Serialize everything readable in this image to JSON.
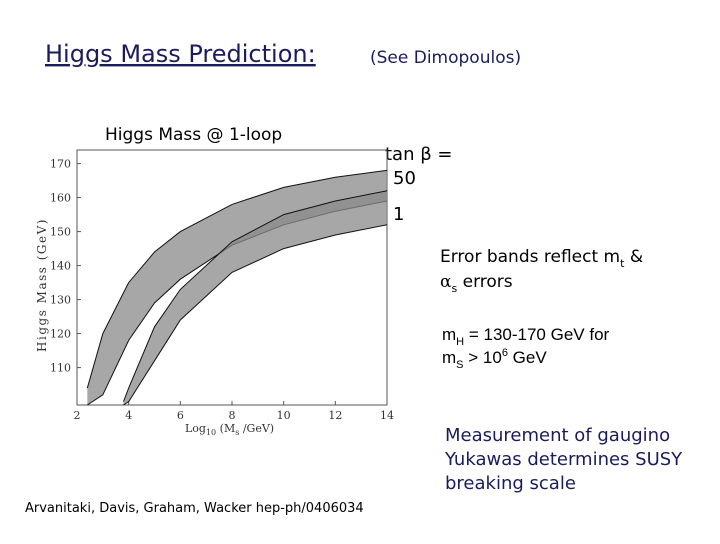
{
  "slide": {
    "title": "Higgs Mass Prediction:",
    "title_note": "(See Dimopoulos)",
    "chart_caption": "Higgs Mass @ 1-loop",
    "tan_label": "tan β =",
    "tan_50": "50",
    "tan_1": "1",
    "error_note": [
      "Error bands reflect m",
      "t",
      " &",
      "α",
      "s",
      " errors"
    ],
    "mass_note": [
      "m",
      "H",
      " = 130-170 GeV for",
      "m",
      "S",
      " > 10",
      "6",
      " GeV"
    ],
    "measurement_note": [
      "Measurement of gaugino",
      "Yukawas determines SUSY",
      "breaking scale"
    ],
    "citation": "Arvanitaki, Davis, Graham, Wacker hep-ph/0406034"
  },
  "chart_data": {
    "type": "band",
    "x_label": [
      "Log",
      "10",
      " (M",
      "s",
      " /GeV)"
    ],
    "y_label": "Higgs Mass (GeV)",
    "xlim": [
      2,
      14
    ],
    "ylim": [
      99,
      174
    ],
    "xticks": [
      2,
      4,
      6,
      8,
      10,
      12,
      14
    ],
    "yticks": [
      110,
      120,
      130,
      140,
      150,
      160,
      170
    ],
    "series": [
      {
        "color": "#8a8a8a",
        "x": [
          2.4,
          3,
          4,
          5,
          6,
          8,
          10,
          12,
          14
        ],
        "high": [
          104,
          120,
          135,
          144,
          150,
          158,
          163,
          166,
          168
        ],
        "low": [
          99,
          102,
          118,
          129,
          136,
          146,
          152,
          156,
          159
        ]
      },
      {
        "color": "#8a8a8a",
        "x": [
          3.8,
          4,
          5,
          6,
          8,
          10,
          12,
          14
        ],
        "high": [
          100,
          104,
          122,
          133,
          147,
          155,
          159,
          162
        ],
        "low": [
          99,
          100,
          112,
          124,
          138,
          145,
          149,
          152
        ]
      }
    ]
  }
}
